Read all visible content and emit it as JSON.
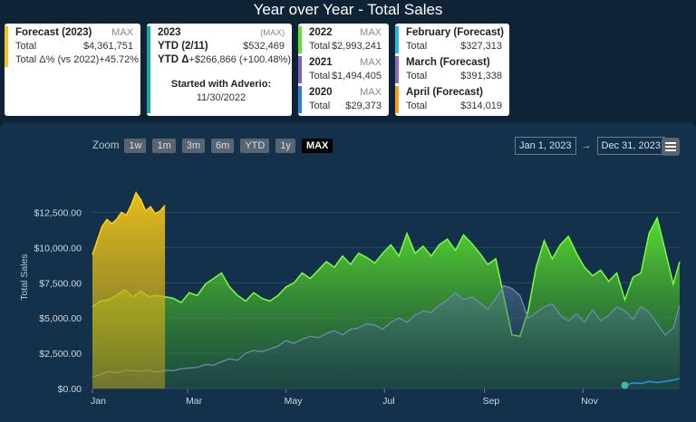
{
  "title": "Year over Year - Total Sales",
  "cards": {
    "forecast": {
      "title": "Forecast (2023)",
      "badge": "MAX",
      "total_label": "Total",
      "total_value": "$4,361,751",
      "delta_label": "Total Δ% (vs 2022)",
      "delta_value": "+45.72%",
      "color": "#f0c419"
    },
    "ytd": {
      "title": "2023",
      "badge": "(MAX)",
      "ytd_label": "YTD (2/11)",
      "ytd_value": "$532,469",
      "delta_label": "YTD Δ",
      "delta_value": "+$266,866 (+100.48%)",
      "started_label": "Started with Adverio:",
      "started_date": "11/30/2022",
      "color": "#1aa7a0"
    },
    "years": [
      {
        "title": "2022",
        "badge": "MAX",
        "label": "Total",
        "value": "$2,993,241",
        "color": "#5ce62e"
      },
      {
        "title": "2021",
        "badge": "MAX",
        "label": "Total",
        "value": "$1,494,405",
        "color": "#7d5fc4"
      },
      {
        "title": "2020",
        "badge": "MAX",
        "label": "Total",
        "value": "$29,373",
        "color": "#2a7de1"
      }
    ],
    "months": [
      {
        "title": "February (Forecast)",
        "label": "Total",
        "value": "$327,313",
        "color": "#2bb6e8"
      },
      {
        "title": "March (Forecast)",
        "label": "Total",
        "value": "$391,338",
        "color": "#8b6bb5"
      },
      {
        "title": "April (Forecast)",
        "label": "Total",
        "value": "$314,019",
        "color": "#f0a420"
      }
    ]
  },
  "toolbar": {
    "zoom_label": "Zoom",
    "zoom_buttons": [
      "1w",
      "1m",
      "3m",
      "6m",
      "YTD",
      "1y",
      "MAX"
    ],
    "active_zoom": "MAX",
    "date_from": "Jan 1, 2023",
    "date_to": "Dec 31, 2023",
    "arrow": "→",
    "menu_icon": "hamburger-menu-icon"
  },
  "chart_data": {
    "type": "area",
    "ylabel": "Total Sales",
    "ylim": [
      0,
      16000
    ],
    "yticks": [
      0,
      2500,
      5000,
      7500,
      10000,
      12500
    ],
    "ytick_labels": [
      "$0.00",
      "$2,500.00",
      "$5,000.00",
      "$7,500.00",
      "$10,000.00",
      "$12,500.00"
    ],
    "x_tick_labels": [
      {
        "label": "Jan",
        "day": 0
      },
      {
        "label": "Mar",
        "day": 59
      },
      {
        "label": "May",
        "day": 120
      },
      {
        "label": "Jul",
        "day": 181
      },
      {
        "label": "Sep",
        "day": 243
      },
      {
        "label": "Nov",
        "day": 304
      }
    ],
    "x_range_days": [
      0,
      364
    ],
    "series": [
      {
        "name": "2022",
        "color": "#5ce62e",
        "points": [
          [
            0,
            5800
          ],
          [
            5,
            6200
          ],
          [
            10,
            6300
          ],
          [
            15,
            6600
          ],
          [
            20,
            7000
          ],
          [
            25,
            6500
          ],
          [
            30,
            6900
          ],
          [
            35,
            6500
          ],
          [
            40,
            6600
          ],
          [
            45,
            6500
          ],
          [
            50,
            6400
          ],
          [
            55,
            6100
          ],
          [
            60,
            6800
          ],
          [
            65,
            6600
          ],
          [
            70,
            7400
          ],
          [
            75,
            7800
          ],
          [
            80,
            8200
          ],
          [
            85,
            7200
          ],
          [
            90,
            6600
          ],
          [
            95,
            6200
          ],
          [
            100,
            6800
          ],
          [
            105,
            6400
          ],
          [
            110,
            6200
          ],
          [
            115,
            6600
          ],
          [
            120,
            7200
          ],
          [
            125,
            7500
          ],
          [
            130,
            8200
          ],
          [
            135,
            7800
          ],
          [
            140,
            8400
          ],
          [
            145,
            9000
          ],
          [
            150,
            8600
          ],
          [
            155,
            9400
          ],
          [
            160,
            8800
          ],
          [
            165,
            9600
          ],
          [
            170,
            9300
          ],
          [
            175,
            8900
          ],
          [
            180,
            9600
          ],
          [
            185,
            10200
          ],
          [
            190,
            9400
          ],
          [
            195,
            11000
          ],
          [
            200,
            9600
          ],
          [
            205,
            10100
          ],
          [
            210,
            9400
          ],
          [
            215,
            10200
          ],
          [
            220,
            10600
          ],
          [
            225,
            9800
          ],
          [
            230,
            10900
          ],
          [
            235,
            10300
          ],
          [
            240,
            9600
          ],
          [
            245,
            8800
          ],
          [
            250,
            9200
          ],
          [
            255,
            6500
          ],
          [
            260,
            3800
          ],
          [
            265,
            3700
          ],
          [
            270,
            5500
          ],
          [
            275,
            8600
          ],
          [
            280,
            10500
          ],
          [
            285,
            9200
          ],
          [
            290,
            10200
          ],
          [
            295,
            10800
          ],
          [
            300,
            9600
          ],
          [
            305,
            8600
          ],
          [
            310,
            8000
          ],
          [
            315,
            8400
          ],
          [
            320,
            7600
          ],
          [
            325,
            8200
          ],
          [
            330,
            6300
          ],
          [
            335,
            7900
          ],
          [
            340,
            8200
          ],
          [
            345,
            11000
          ],
          [
            350,
            12100
          ],
          [
            355,
            9800
          ],
          [
            360,
            7400
          ],
          [
            364,
            9000
          ]
        ]
      },
      {
        "name": "2021",
        "color": "#5b6fc4",
        "points": [
          [
            0,
            800
          ],
          [
            5,
            1000
          ],
          [
            10,
            1200
          ],
          [
            15,
            1100
          ],
          [
            20,
            1300
          ],
          [
            25,
            1250
          ],
          [
            30,
            1200
          ],
          [
            35,
            1300
          ],
          [
            40,
            1150
          ],
          [
            45,
            1300
          ],
          [
            50,
            1250
          ],
          [
            55,
            1400
          ],
          [
            60,
            1450
          ],
          [
            65,
            1500
          ],
          [
            70,
            1700
          ],
          [
            75,
            1650
          ],
          [
            80,
            1900
          ],
          [
            85,
            2100
          ],
          [
            90,
            2000
          ],
          [
            95,
            2500
          ],
          [
            100,
            2700
          ],
          [
            105,
            2600
          ],
          [
            110,
            2800
          ],
          [
            115,
            3000
          ],
          [
            120,
            3400
          ],
          [
            125,
            3200
          ],
          [
            130,
            3500
          ],
          [
            135,
            3700
          ],
          [
            140,
            3600
          ],
          [
            145,
            3900
          ],
          [
            150,
            4100
          ],
          [
            155,
            3800
          ],
          [
            160,
            4200
          ],
          [
            165,
            4300
          ],
          [
            170,
            4600
          ],
          [
            175,
            4500
          ],
          [
            180,
            4200
          ],
          [
            185,
            4700
          ],
          [
            190,
            5000
          ],
          [
            195,
            4700
          ],
          [
            200,
            5200
          ],
          [
            205,
            5500
          ],
          [
            210,
            5400
          ],
          [
            215,
            5900
          ],
          [
            220,
            6300
          ],
          [
            225,
            6800
          ],
          [
            230,
            6300
          ],
          [
            235,
            6500
          ],
          [
            240,
            6100
          ],
          [
            245,
            5600
          ],
          [
            250,
            6400
          ],
          [
            255,
            7300
          ],
          [
            260,
            7100
          ],
          [
            265,
            6600
          ],
          [
            270,
            5000
          ],
          [
            275,
            5400
          ],
          [
            280,
            5800
          ],
          [
            285,
            6000
          ],
          [
            290,
            5200
          ],
          [
            295,
            4800
          ],
          [
            300,
            5300
          ],
          [
            305,
            4700
          ],
          [
            310,
            5600
          ],
          [
            315,
            4800
          ],
          [
            320,
            5200
          ],
          [
            325,
            5800
          ],
          [
            330,
            5500
          ],
          [
            335,
            4900
          ],
          [
            340,
            5800
          ],
          [
            345,
            5400
          ],
          [
            350,
            4600
          ],
          [
            355,
            3800
          ],
          [
            360,
            4300
          ],
          [
            364,
            5900
          ]
        ]
      },
      {
        "name": "2020",
        "color": "#2a7de1",
        "points": [
          [
            330,
            220
          ],
          [
            335,
            400
          ],
          [
            340,
            350
          ],
          [
            345,
            500
          ],
          [
            350,
            420
          ],
          [
            355,
            500
          ],
          [
            360,
            600
          ],
          [
            364,
            700
          ]
        ]
      },
      {
        "name": "2023",
        "color": "#e8b800",
        "points": [
          [
            0,
            9500
          ],
          [
            3,
            10500
          ],
          [
            6,
            11500
          ],
          [
            9,
            12000
          ],
          [
            12,
            11700
          ],
          [
            15,
            12000
          ],
          [
            18,
            12500
          ],
          [
            21,
            12300
          ],
          [
            24,
            13000
          ],
          [
            27,
            13900
          ],
          [
            30,
            13400
          ],
          [
            33,
            12600
          ],
          [
            36,
            12900
          ],
          [
            39,
            12400
          ],
          [
            42,
            12600
          ],
          [
            45,
            13000
          ]
        ]
      }
    ]
  }
}
